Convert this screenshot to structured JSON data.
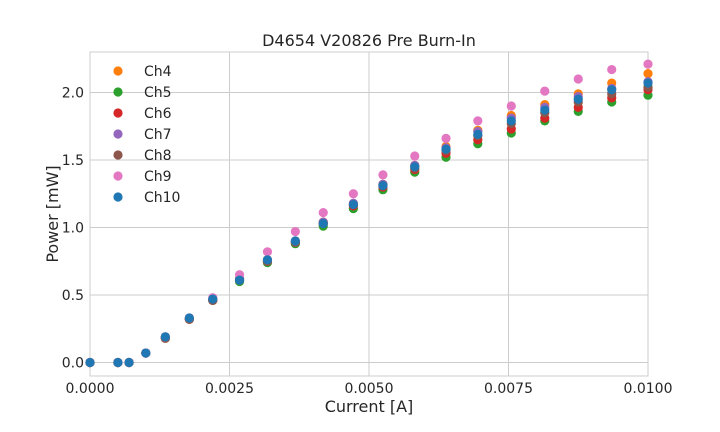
{
  "chart_data": {
    "type": "scatter",
    "title": "D4654 V20826 Pre Burn-In",
    "xlabel": "Current [A]",
    "ylabel": "Power [mW]",
    "xlim": [
      0.0,
      0.01
    ],
    "ylim": [
      -0.1,
      2.3
    ],
    "xticks": [
      "0.0000",
      "0.0025",
      "0.0050",
      "0.0075",
      "0.0100"
    ],
    "yticks": [
      "0.0",
      "0.5",
      "1.0",
      "1.5",
      "2.0"
    ],
    "grid": true,
    "legend_position": "upper-left",
    "x": [
      0.0,
      0.0005,
      0.0007,
      0.001,
      0.00135,
      0.00178,
      0.0022,
      0.00268,
      0.00318,
      0.00368,
      0.00418,
      0.00472,
      0.00525,
      0.00582,
      0.00638,
      0.00695,
      0.00755,
      0.00815,
      0.00875,
      0.00935,
      0.01
    ],
    "series": [
      {
        "name": "Ch4",
        "color": "#ff7f0e",
        "values": [
          0.0,
          0.0,
          0.0,
          0.07,
          0.19,
          0.33,
          0.47,
          0.62,
          0.76,
          0.9,
          1.04,
          1.17,
          1.32,
          1.46,
          1.6,
          1.72,
          1.83,
          1.91,
          1.99,
          2.07,
          2.14
        ]
      },
      {
        "name": "Ch5",
        "color": "#2ca02c",
        "values": [
          0.0,
          0.0,
          0.0,
          0.07,
          0.18,
          0.32,
          0.46,
          0.6,
          0.74,
          0.88,
          1.01,
          1.14,
          1.28,
          1.41,
          1.52,
          1.62,
          1.7,
          1.79,
          1.86,
          1.93,
          1.98
        ]
      },
      {
        "name": "Ch6",
        "color": "#d62728",
        "values": [
          0.0,
          0.0,
          0.0,
          0.07,
          0.18,
          0.32,
          0.46,
          0.61,
          0.75,
          0.89,
          1.03,
          1.16,
          1.3,
          1.43,
          1.55,
          1.65,
          1.73,
          1.81,
          1.89,
          1.96,
          2.02
        ]
      },
      {
        "name": "Ch7",
        "color": "#9467bd",
        "values": [
          0.0,
          0.0,
          0.0,
          0.07,
          0.19,
          0.33,
          0.47,
          0.62,
          0.76,
          0.9,
          1.04,
          1.18,
          1.32,
          1.46,
          1.59,
          1.71,
          1.81,
          1.89,
          1.97,
          2.03,
          2.08
        ]
      },
      {
        "name": "Ch8",
        "color": "#8c564b",
        "values": [
          0.0,
          0.0,
          0.0,
          0.07,
          0.18,
          0.32,
          0.46,
          0.61,
          0.75,
          0.89,
          1.03,
          1.17,
          1.31,
          1.44,
          1.57,
          1.68,
          1.77,
          1.85,
          1.93,
          1.99,
          2.04
        ]
      },
      {
        "name": "Ch9",
        "color": "#e377c2",
        "values": [
          0.0,
          0.0,
          0.0,
          0.07,
          0.19,
          0.33,
          0.48,
          0.65,
          0.82,
          0.97,
          1.11,
          1.25,
          1.39,
          1.53,
          1.66,
          1.79,
          1.9,
          2.01,
          2.1,
          2.17,
          2.21
        ]
      },
      {
        "name": "Ch10",
        "color": "#1f77b4",
        "values": [
          0.0,
          0.0,
          0.0,
          0.07,
          0.19,
          0.33,
          0.47,
          0.61,
          0.76,
          0.9,
          1.03,
          1.17,
          1.31,
          1.45,
          1.58,
          1.69,
          1.79,
          1.87,
          1.95,
          2.02,
          2.07
        ]
      }
    ]
  }
}
